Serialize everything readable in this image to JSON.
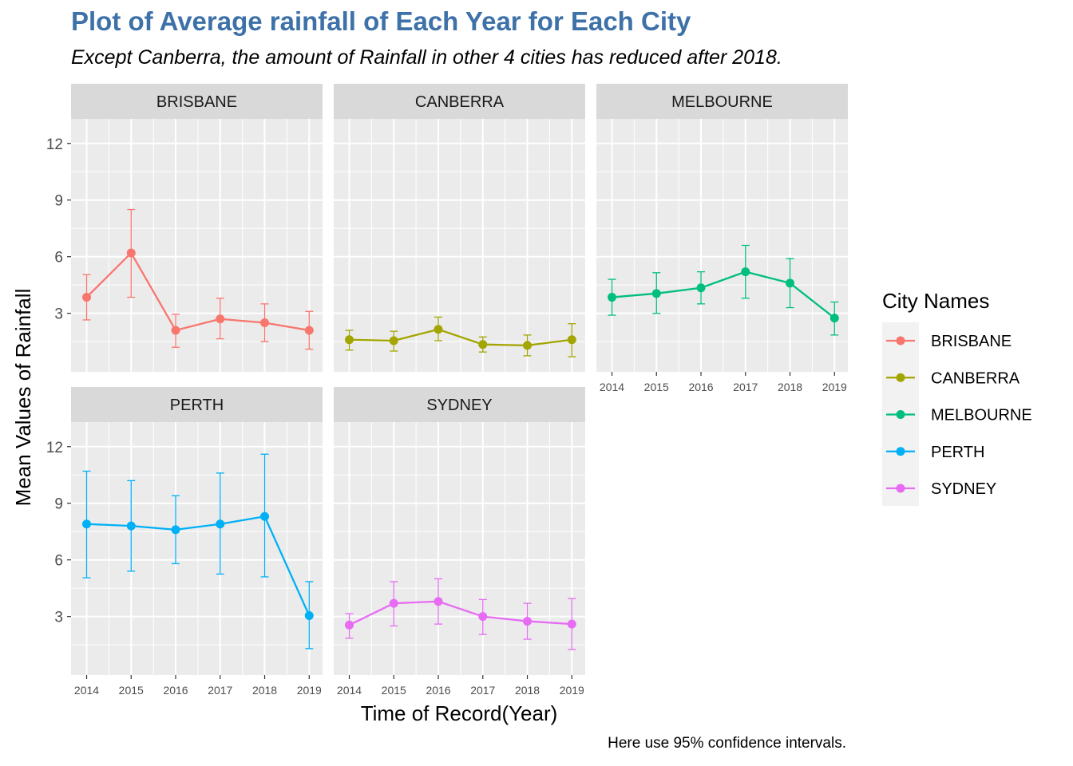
{
  "title": "Plot of Average rainfall of Each Year for Each City",
  "subtitle": "Except Canberra, the amount of Rainfall in other 4 cities has reduced after 2018.",
  "caption": "Here use 95% confidence intervals.",
  "chart_data": {
    "type": "line",
    "facets": true,
    "xlabel": "Time of Record(Year)",
    "ylabel": "Mean Values of Rainfall",
    "x": [
      2014,
      2015,
      2016,
      2017,
      2018,
      2019
    ],
    "x_tick_labels": [
      "2014",
      "2015",
      "2016",
      "2017",
      "2018",
      "2019"
    ],
    "y_ticks": [
      3,
      6,
      9,
      12
    ],
    "y_tick_labels": [
      "3",
      "6",
      "9",
      "12"
    ],
    "ylim": [
      -0.1,
      13.3
    ],
    "grid": true,
    "error_bars": "95% confidence interval",
    "legend": {
      "title": "City Names",
      "position": "right"
    },
    "series": [
      {
        "name": "BRISBANE",
        "color": "#F8766D",
        "values": [
          3.85,
          6.2,
          2.1,
          2.7,
          2.5,
          2.1
        ],
        "lower": [
          2.65,
          3.85,
          1.2,
          1.65,
          1.5,
          1.1
        ],
        "upper": [
          5.05,
          8.5,
          2.95,
          3.8,
          3.5,
          3.1
        ]
      },
      {
        "name": "CANBERRA",
        "color": "#A3A500",
        "values": [
          1.6,
          1.55,
          2.15,
          1.35,
          1.3,
          1.6
        ],
        "lower": [
          1.05,
          1.0,
          1.55,
          0.95,
          0.75,
          0.7
        ],
        "upper": [
          2.1,
          2.05,
          2.8,
          1.75,
          1.85,
          2.45
        ]
      },
      {
        "name": "MELBOURNE",
        "color": "#00BF7D",
        "values": [
          3.85,
          4.05,
          4.35,
          5.2,
          4.6,
          2.75
        ],
        "lower": [
          2.9,
          3.0,
          3.5,
          3.8,
          3.3,
          1.85
        ],
        "upper": [
          4.8,
          5.15,
          5.2,
          6.6,
          5.9,
          3.6
        ]
      },
      {
        "name": "PERTH",
        "color": "#00B0F6",
        "values": [
          7.9,
          7.8,
          7.6,
          7.9,
          8.3,
          3.05
        ],
        "lower": [
          5.05,
          5.4,
          5.8,
          5.25,
          5.1,
          1.3
        ],
        "upper": [
          10.7,
          10.2,
          9.4,
          10.6,
          11.6,
          4.85
        ]
      },
      {
        "name": "SYDNEY",
        "color": "#E76BF3",
        "values": [
          2.55,
          3.7,
          3.8,
          3.0,
          2.75,
          2.6
        ],
        "lower": [
          1.85,
          2.5,
          2.6,
          2.05,
          1.8,
          1.25
        ],
        "upper": [
          3.15,
          4.85,
          5.0,
          3.9,
          3.7,
          3.95
        ]
      }
    ]
  }
}
